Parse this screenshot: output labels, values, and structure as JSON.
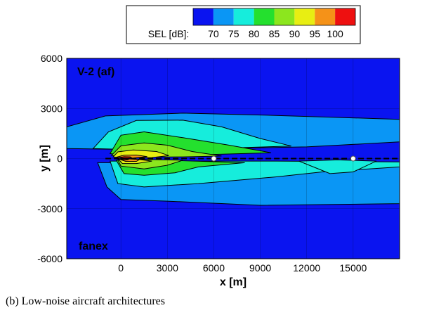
{
  "caption": "(b) Low-noise aircraft architectures",
  "chart_data": {
    "type": "heatmap",
    "subtype": "filled-contour",
    "title": "",
    "panel_label_top": "V-2 (af)",
    "panel_label_bottom": "fanex",
    "xlabel": "x [m]",
    "ylabel": "y [m]",
    "xlim": [
      -3500,
      18000
    ],
    "ylim": [
      -6000,
      6000
    ],
    "x_ticks": [
      0,
      3000,
      6000,
      9000,
      12000,
      15000
    ],
    "y_ticks": [
      -6000,
      -3000,
      0,
      3000,
      6000
    ],
    "grid": true,
    "colorbar": {
      "label": "SEL [dB]:",
      "position": "top",
      "levels": [
        70,
        75,
        80,
        85,
        90,
        95,
        100
      ],
      "colors": [
        "#0a14f0",
        "#0a96f5",
        "#16eddc",
        "#24e02e",
        "#8ce61e",
        "#e8ee12",
        "#f59218",
        "#ee1010"
      ]
    },
    "markers": [
      {
        "x": 6000,
        "y": 0,
        "symbol": "circle"
      },
      {
        "x": 15000,
        "y": 0,
        "symbol": "circle"
      }
    ],
    "flight_track": {
      "y": 0,
      "style": "dashed"
    },
    "contours_upper": [
      {
        "level": 70,
        "points": [
          [
            -3500,
            600
          ],
          [
            -3500,
            1900
          ],
          [
            -1000,
            2550
          ],
          [
            4000,
            2720
          ],
          [
            10000,
            2580
          ],
          [
            18000,
            2350
          ],
          [
            18000,
            1000
          ],
          [
            12000,
            700
          ],
          [
            6000,
            600
          ],
          [
            0,
            550
          ]
        ]
      },
      {
        "level": 75,
        "points": [
          [
            -1800,
            600
          ],
          [
            -800,
            1600
          ],
          [
            1000,
            2280
          ],
          [
            4000,
            2300
          ],
          [
            6500,
            1900
          ],
          [
            9000,
            1200
          ],
          [
            11000,
            750
          ],
          [
            6000,
            600
          ],
          [
            0,
            550
          ]
        ]
      },
      {
        "level": 80,
        "points": [
          [
            -700,
            300
          ],
          [
            0,
            1400
          ],
          [
            1500,
            1600
          ],
          [
            4000,
            1250
          ],
          [
            7000,
            800
          ],
          [
            9700,
            350
          ],
          [
            6000,
            250
          ],
          [
            0,
            200
          ]
        ]
      },
      {
        "level": 85,
        "points": [
          [
            -600,
            200
          ],
          [
            0,
            760
          ],
          [
            1500,
            940
          ],
          [
            3000,
            800
          ],
          [
            4600,
            420
          ],
          [
            6500,
            150
          ],
          [
            4000,
            100
          ],
          [
            0,
            80
          ]
        ]
      },
      {
        "level": 90,
        "points": [
          [
            -500,
            100
          ],
          [
            -200,
            400
          ],
          [
            800,
            520
          ],
          [
            2300,
            420
          ],
          [
            3100,
            180
          ],
          [
            2000,
            60
          ],
          [
            0,
            40
          ]
        ]
      },
      {
        "level": 95,
        "points": [
          [
            -300,
            80
          ],
          [
            200,
            200
          ],
          [
            1000,
            210
          ],
          [
            1700,
            120
          ],
          [
            800,
            30
          ],
          [
            0,
            20
          ]
        ]
      },
      {
        "level": 100,
        "points": [
          [
            -150,
            50
          ],
          [
            200,
            110
          ],
          [
            600,
            100
          ],
          [
            700,
            40
          ],
          [
            300,
            10
          ]
        ]
      }
    ],
    "contours_lower": [
      {
        "level": 70,
        "points": [
          [
            -1500,
            -250
          ],
          [
            -900,
            -1700
          ],
          [
            0,
            -2450
          ],
          [
            3000,
            -2550
          ],
          [
            9000,
            -2800
          ],
          [
            18000,
            -2700
          ],
          [
            18000,
            -300
          ],
          [
            10000,
            -300
          ],
          [
            3000,
            -250
          ]
        ]
      },
      {
        "level": 75,
        "points": [
          [
            -700,
            -150
          ],
          [
            -200,
            -1500
          ],
          [
            1500,
            -1700
          ],
          [
            5000,
            -1500
          ],
          [
            10000,
            -1100
          ],
          [
            13000,
            -800
          ],
          [
            18000,
            -500
          ],
          [
            18000,
            -200
          ],
          [
            10000,
            -150
          ]
        ]
      },
      {
        "level": 80,
        "points": [
          [
            -300,
            -100
          ],
          [
            200,
            -900
          ],
          [
            1500,
            -1000
          ],
          [
            3500,
            -850
          ],
          [
            5000,
            -500
          ],
          [
            8000,
            -250
          ],
          [
            3000,
            -100
          ]
        ]
      },
      {
        "level": 85,
        "points": [
          [
            -200,
            -80
          ],
          [
            0,
            -450
          ],
          [
            1500,
            -620
          ],
          [
            3000,
            -400
          ],
          [
            4000,
            -100
          ],
          [
            1500,
            -50
          ]
        ]
      },
      {
        "level": 90,
        "points": [
          [
            -150,
            -60
          ],
          [
            100,
            -300
          ],
          [
            1000,
            -300
          ],
          [
            2000,
            -150
          ],
          [
            1000,
            -40
          ]
        ]
      },
      {
        "level": 95,
        "points": [
          [
            -100,
            -40
          ],
          [
            300,
            -170
          ],
          [
            1000,
            -170
          ],
          [
            1200,
            -60
          ],
          [
            500,
            -20
          ]
        ]
      },
      {
        "level": 100,
        "points": [
          [
            -50,
            -30
          ],
          [
            300,
            -90
          ],
          [
            500,
            -60
          ],
          [
            200,
            -10
          ]
        ]
      }
    ],
    "lobe_lower_right": {
      "level": 75,
      "points": [
        [
          11500,
          -150
        ],
        [
          13500,
          -900
        ],
        [
          15000,
          -800
        ],
        [
          16500,
          -150
        ],
        [
          14000,
          -80
        ]
      ]
    }
  }
}
